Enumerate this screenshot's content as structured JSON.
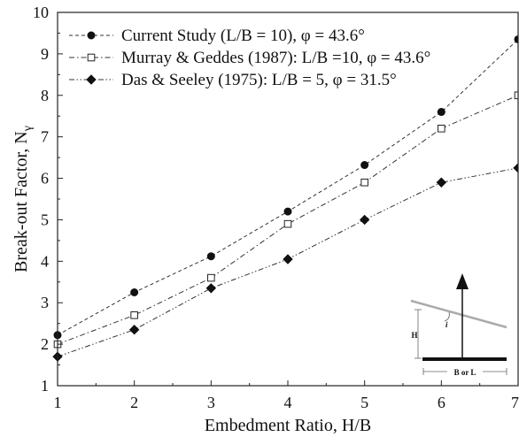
{
  "chart_data": {
    "type": "line",
    "xlabel": "Embedment Ratio, H/B",
    "ylabel_main": "Break-out Factor, N",
    "ylabel_sub": "γ",
    "xlim": [
      1,
      7
    ],
    "ylim": [
      1,
      10
    ],
    "x_ticks": [
      "1",
      "2",
      "3",
      "4",
      "5",
      "6",
      "7"
    ],
    "y_ticks": [
      "1",
      "2",
      "3",
      "4",
      "5",
      "6",
      "7",
      "8",
      "9",
      "10"
    ],
    "grid": false,
    "legend_position": "top-left",
    "series": [
      {
        "name": "Current Study (L/B = 10), φ = 43.6°",
        "marker": "filled-circle",
        "line": "dashed",
        "x": [
          1,
          2,
          3,
          4,
          5,
          6,
          7
        ],
        "y": [
          2.22,
          3.25,
          4.12,
          5.2,
          6.32,
          7.6,
          9.35
        ]
      },
      {
        "name": "Murray & Geddes (1987): L/B =10, φ = 43.6°",
        "marker": "open-square",
        "line": "dash-dot",
        "x": [
          1,
          2,
          3,
          4,
          5,
          6,
          7
        ],
        "y": [
          2.0,
          2.7,
          3.6,
          4.9,
          5.9,
          7.2,
          8.0
        ]
      },
      {
        "name": "Das & Seeley (1975): L/B = 5, φ = 31.5°",
        "marker": "filled-diamond",
        "line": "dash-dot-dot",
        "x": [
          1,
          2,
          3,
          4,
          5,
          6,
          7
        ],
        "y": [
          1.7,
          2.35,
          3.35,
          4.05,
          5.0,
          5.9,
          6.25
        ]
      }
    ],
    "inset": {
      "height_label": "H",
      "width_label": "B or L",
      "angle_label": "i"
    }
  }
}
